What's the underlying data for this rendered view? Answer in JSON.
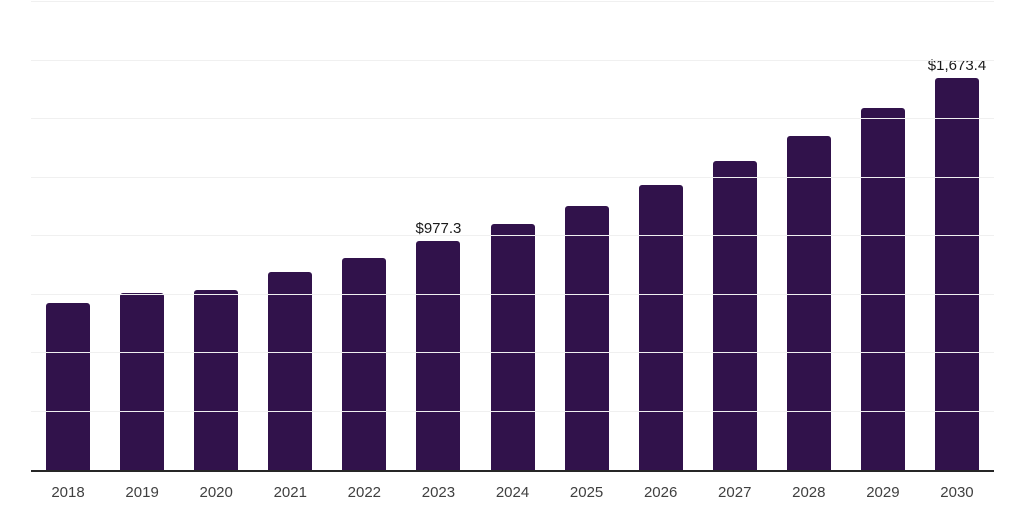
{
  "chart_data": {
    "type": "bar",
    "title": "",
    "xlabel": "",
    "ylabel": "",
    "categories": [
      "2018",
      "2019",
      "2020",
      "2021",
      "2022",
      "2023",
      "2024",
      "2025",
      "2026",
      "2027",
      "2028",
      "2029",
      "2030"
    ],
    "values": [
      712,
      756,
      771,
      846,
      906,
      977.3,
      1052,
      1129,
      1219,
      1319,
      1429,
      1548,
      1673.4
    ],
    "data_labels": [
      {
        "index": 5,
        "text": "$977.3"
      },
      {
        "index": 12,
        "text": "$1,673.4"
      }
    ],
    "ylim": [
      0,
      2000
    ],
    "grid_step": 250,
    "grid": "horizontal",
    "legend": "none",
    "y_tick_labels_visible": false,
    "colors": {
      "bar": "#31124B",
      "gridline": "#F0F0F0",
      "axis": "#262626",
      "tick_label": "#404040",
      "data_label": "#1A1A1A",
      "background": "#FFFFFF"
    }
  }
}
